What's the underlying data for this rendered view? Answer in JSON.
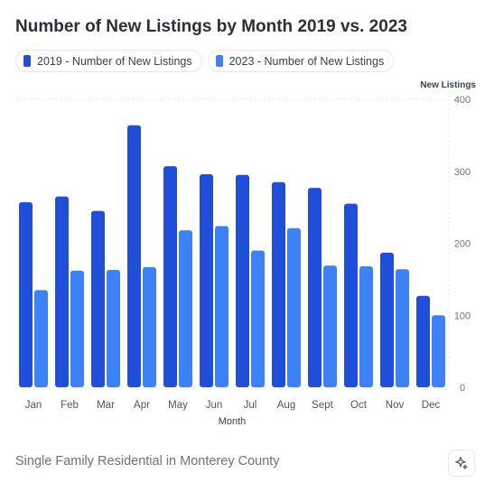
{
  "title": "Number of New Listings by Month 2019 vs. 2023",
  "footer": "Single Family Residential in Monterey County",
  "ai_button_icon": "sparkle-icon",
  "chart_data": {
    "type": "bar",
    "title": "Number of New Listings by Month 2019 vs. 2023",
    "xlabel": "Month",
    "ylabel": "New Listings",
    "ylim": [
      0,
      400
    ],
    "yticks": [
      0,
      100,
      200,
      300,
      400
    ],
    "grid": false,
    "legend_position": "top-left",
    "categories": [
      "Jan",
      "Feb",
      "Mar",
      "Apr",
      "May",
      "Jun",
      "Jul",
      "Aug",
      "Sept",
      "Oct",
      "Nov",
      "Dec"
    ],
    "series": [
      {
        "name": "2019 - Number of New Listings",
        "color": "#1f4fd8",
        "values": [
          257,
          265,
          245,
          364,
          307,
          296,
          295,
          285,
          277,
          255,
          187,
          127
        ]
      },
      {
        "name": "2023 - Number of New Listings",
        "color": "#3b82f6",
        "values": [
          135,
          162,
          163,
          167,
          218,
          224,
          190,
          221,
          169,
          168,
          164,
          100
        ]
      }
    ]
  }
}
